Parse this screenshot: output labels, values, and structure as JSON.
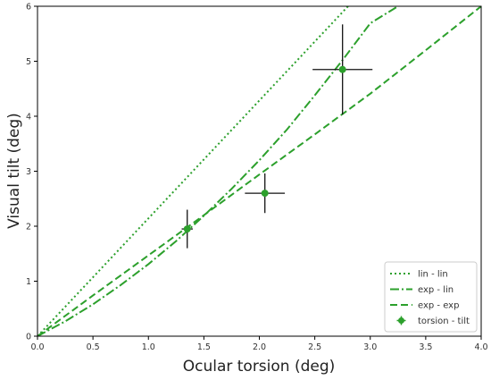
{
  "chart_data": {
    "type": "line",
    "xlabel": "Ocular torsion (deg)",
    "ylabel": "Visual tilt (deg)",
    "xlim": [
      0,
      4
    ],
    "ylim": [
      0,
      6
    ],
    "xticks": [
      "0.0",
      "0.5",
      "1.0",
      "1.5",
      "2.0",
      "2.5",
      "3.0",
      "3.5",
      "4.0"
    ],
    "yticks": [
      "0",
      "1",
      "2",
      "3",
      "4",
      "5",
      "6"
    ],
    "grid": false,
    "legend": "bottom-right",
    "color": "#2ca02c",
    "errorbar_color": "#111111",
    "series": [
      {
        "name": "lin - lin",
        "style": "dotted",
        "x": [
          0,
          2.8
        ],
        "y": [
          0,
          6.0
        ]
      },
      {
        "name": "exp - lin",
        "style": "dashdot",
        "x": [
          0,
          0.25,
          0.5,
          0.75,
          1.0,
          1.25,
          1.5,
          1.75,
          2.0,
          2.25,
          2.5,
          2.75,
          3.0,
          3.25
        ],
        "y": [
          0,
          0.27,
          0.58,
          0.93,
          1.31,
          1.73,
          2.19,
          2.68,
          3.2,
          3.76,
          4.38,
          5.02,
          5.69,
          6.0
        ]
      },
      {
        "name": "exp - exp",
        "style": "dashed",
        "x": [
          0,
          0.5,
          1.0,
          1.5,
          2.0,
          2.5,
          3.0,
          3.5,
          4.0
        ],
        "y": [
          0,
          0.74,
          1.47,
          2.2,
          2.94,
          3.67,
          4.41,
          5.2,
          6.0
        ]
      },
      {
        "name": "torsion - tilt",
        "style": "errorbar",
        "points": [
          {
            "x": 1.35,
            "y": 1.95,
            "xerr": 0.05,
            "yerr": 0.35
          },
          {
            "x": 2.05,
            "y": 2.6,
            "xerr": 0.18,
            "yerr": 0.36
          },
          {
            "x": 2.75,
            "y": 4.85,
            "xerr": 0.27,
            "yerr": 0.82
          }
        ]
      }
    ]
  }
}
